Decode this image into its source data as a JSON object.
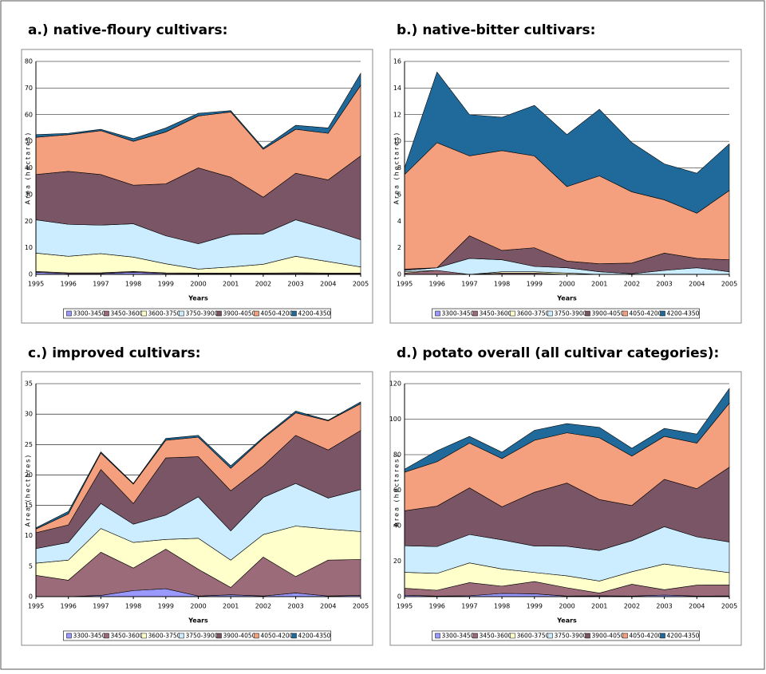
{
  "chart_data": [
    {
      "type": "area",
      "title": "a.) native-floury cultivars:",
      "xlabel": "Years",
      "ylabel": "Area (hectares)",
      "categories": [
        "1995",
        "1996",
        "1997",
        "1998",
        "1999",
        "2000",
        "2001",
        "2002",
        "2003",
        "2004",
        "2005"
      ],
      "ylim": [
        0,
        80
      ],
      "yticks": [
        0,
        10,
        20,
        30,
        40,
        50,
        60,
        70,
        80
      ],
      "grid": true,
      "stacked": true,
      "legend": "bottom",
      "series": [
        {
          "name": "3300-3450",
          "color": "#9999ff",
          "values": [
            0.8,
            0.3,
            0.3,
            0.8,
            0.3,
            0.2,
            0.2,
            0.2,
            0.3,
            0.2,
            0.2
          ]
        },
        {
          "name": "3450-3600",
          "color": "#9c6b7a",
          "values": [
            0.3,
            0.3,
            0.3,
            0.3,
            0.3,
            0.3,
            0.3,
            0.3,
            0.3,
            0.3,
            0.3
          ]
        },
        {
          "name": "3600-3750",
          "color": "#ffffcc",
          "values": [
            6.9,
            6.2,
            7.2,
            5.4,
            3.4,
            1.5,
            2.3,
            3.3,
            6.2,
            4.3,
            2.3
          ]
        },
        {
          "name": "3750-3900",
          "color": "#ccecff",
          "values": [
            12.5,
            12,
            10.7,
            12.5,
            10.5,
            9.5,
            12.2,
            11.4,
            13.7,
            12.2,
            10.2
          ]
        },
        {
          "name": "3900-4050",
          "color": "#7a5566",
          "values": [
            17,
            19.9,
            19,
            14.5,
            19.5,
            28.5,
            21.5,
            13.8,
            17.5,
            18.5,
            31.5
          ]
        },
        {
          "name": "4050-4200",
          "color": "#f4a07e",
          "values": [
            14,
            13.8,
            16.5,
            16.5,
            19.5,
            19.5,
            24.5,
            18,
            16.5,
            17.5,
            26.5
          ]
        },
        {
          "name": "4200-4350",
          "color": "#1f6a9a",
          "values": [
            1,
            0.5,
            0.5,
            1,
            1.5,
            1,
            0.5,
            0.5,
            1.5,
            2,
            4.5
          ]
        }
      ]
    },
    {
      "type": "area",
      "title": "b.) native-bitter cultivars:",
      "xlabel": "Years",
      "ylabel": "Area (hectares)",
      "categories": [
        "1995",
        "1996",
        "1997",
        "1998",
        "1999",
        "2000",
        "2001",
        "2002",
        "2003",
        "2004",
        "2005"
      ],
      "ylim": [
        0,
        16
      ],
      "yticks": [
        0,
        2,
        4,
        6,
        8,
        10,
        12,
        14,
        16
      ],
      "grid": true,
      "stacked": true,
      "legend": "bottom",
      "series": [
        {
          "name": "3300-3450",
          "color": "#9999ff",
          "values": [
            0,
            0,
            0,
            0,
            0,
            0,
            0,
            0,
            0,
            0,
            0
          ]
        },
        {
          "name": "3450-3600",
          "color": "#9c6b7a",
          "values": [
            0.1,
            0.3,
            0,
            0.1,
            0.1,
            0,
            0,
            0,
            0,
            0,
            0
          ]
        },
        {
          "name": "3600-3750",
          "color": "#ffffcc",
          "values": [
            0.1,
            0,
            0,
            0.1,
            0.1,
            0.1,
            0,
            0,
            0,
            0,
            0
          ]
        },
        {
          "name": "3750-3900",
          "color": "#ccecff",
          "values": [
            0.1,
            0.2,
            1.2,
            0.9,
            0.4,
            0.4,
            0.2,
            0.05,
            0.3,
            0.5,
            0.2
          ]
        },
        {
          "name": "3900-4050",
          "color": "#7a5566",
          "values": [
            0.1,
            0,
            1.7,
            0.7,
            1.4,
            0.5,
            0.6,
            0.8,
            1.3,
            0.7,
            0.9
          ]
        },
        {
          "name": "4050-4200",
          "color": "#f4a07e",
          "values": [
            7.1,
            9.4,
            6,
            7.5,
            6.9,
            5.6,
            6.6,
            5.35,
            4,
            3.4,
            5.2
          ]
        },
        {
          "name": "4200-4350",
          "color": "#1f6a9a",
          "values": [
            0.5,
            5.3,
            3.1,
            2.5,
            3.8,
            3.9,
            5,
            3.7,
            2.7,
            3,
            3.5
          ]
        }
      ]
    },
    {
      "type": "area",
      "title": "c.) improved cultivars:",
      "xlabel": "Years",
      "ylabel": "Area (hectares)",
      "categories": [
        "1995",
        "1996",
        "1997",
        "1998",
        "1999",
        "2000",
        "2001",
        "2002",
        "2003",
        "2004",
        "2005"
      ],
      "ylim": [
        0,
        35
      ],
      "yticks": [
        0,
        5,
        10,
        15,
        20,
        25,
        30,
        35
      ],
      "grid": true,
      "stacked": true,
      "legend": "bottom",
      "series": [
        {
          "name": "3300-3450",
          "color": "#9999ff",
          "values": [
            0,
            0,
            0.2,
            1,
            1.3,
            0.1,
            0.3,
            0.1,
            0.6,
            0.1,
            0.2
          ]
        },
        {
          "name": "3450-3600",
          "color": "#9c6b7a",
          "values": [
            3.5,
            2.7,
            7.1,
            3.7,
            6.5,
            4.4,
            1.2,
            6.4,
            2.7,
            5.9,
            5.9
          ]
        },
        {
          "name": "3600-3750",
          "color": "#ffffcc",
          "values": [
            2,
            3.3,
            3.9,
            4.2,
            1.6,
            5.1,
            4.5,
            3.7,
            8.3,
            5.1,
            4.6
          ]
        },
        {
          "name": "3750-3900",
          "color": "#ccecff",
          "values": [
            2.4,
            2.9,
            4.1,
            3,
            4,
            6.8,
            4.8,
            6.1,
            7,
            5.1,
            6.9
          ]
        },
        {
          "name": "3900-4050",
          "color": "#7a5566",
          "values": [
            2.6,
            2.9,
            5.6,
            3.4,
            9.4,
            6.6,
            6.6,
            5.2,
            7.9,
            7.9,
            9.7
          ]
        },
        {
          "name": "4050-4200",
          "color": "#f4a07e",
          "values": [
            0.6,
            1.8,
            2.7,
            3.2,
            2.9,
            3.2,
            3.7,
            4.5,
            3.7,
            4.8,
            4.4
          ]
        },
        {
          "name": "4200-4350",
          "color": "#1f6a9a",
          "values": [
            0.2,
            0.4,
            0.2,
            0.1,
            0.3,
            0.3,
            0.4,
            0.2,
            0.3,
            0.1,
            0.3
          ]
        }
      ]
    },
    {
      "type": "area",
      "title": "d.) potato overall (all cultivar categories):",
      "xlabel": "Years",
      "ylabel": "Area (hectares)",
      "categories": [
        "1995",
        "1996",
        "1997",
        "1998",
        "1999",
        "2000",
        "2001",
        "2002",
        "2003",
        "2004",
        "2005"
      ],
      "ylim": [
        0,
        120
      ],
      "yticks": [
        0,
        20,
        40,
        60,
        80,
        100,
        120
      ],
      "grid": true,
      "stacked": true,
      "legend": "bottom",
      "series": [
        {
          "name": "3300-3450",
          "color": "#9999ff",
          "values": [
            0.8,
            0.3,
            0.5,
            1.8,
            1.6,
            0.3,
            0.5,
            0.3,
            0.9,
            0.3,
            0.4
          ]
        },
        {
          "name": "3450-3600",
          "color": "#9c6b7a",
          "values": [
            3.9,
            3.3,
            7.4,
            4.1,
            6.9,
            4.7,
            1.5,
            6.7,
            3,
            6.2,
            6.2
          ]
        },
        {
          "name": "3600-3750",
          "color": "#ffffcc",
          "values": [
            9,
            9.5,
            11.1,
            9.7,
            5.1,
            6.7,
            6.8,
            7,
            14.5,
            9.4,
            6.9
          ]
        },
        {
          "name": "3750-3900",
          "color": "#ccecff",
          "values": [
            15,
            15.1,
            16,
            16.4,
            14.9,
            16.7,
            17.2,
            17.55,
            21,
            17.8,
            17.3
          ]
        },
        {
          "name": "3900-4050",
          "color": "#7a5566",
          "values": [
            19.7,
            22.8,
            26.3,
            18.6,
            30.3,
            35.6,
            28.7,
            19.8,
            26.7,
            27.1,
            42.1
          ]
        },
        {
          "name": "4050-4200",
          "color": "#f4a07e",
          "values": [
            21.7,
            25,
            25.2,
            27.2,
            29.3,
            28.3,
            34.8,
            27.85,
            24.2,
            25.7,
            36.1
          ]
        },
        {
          "name": "4200-4350",
          "color": "#1f6a9a",
          "values": [
            1.7,
            6.2,
            3.8,
            3.6,
            5.6,
            5.2,
            5.9,
            4.4,
            4.5,
            5.1,
            8.3
          ]
        }
      ]
    }
  ]
}
